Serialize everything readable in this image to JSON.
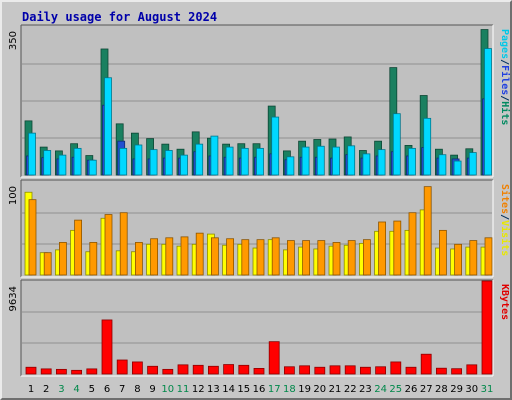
{
  "chart_data": {
    "type": "bar",
    "title": "Daily usage for August 2024",
    "categories": [
      "1",
      "2",
      "3",
      "4",
      "5",
      "6",
      "7",
      "8",
      "9",
      "10",
      "11",
      "12",
      "13",
      "14",
      "15",
      "16",
      "17",
      "18",
      "19",
      "20",
      "21",
      "22",
      "23",
      "24",
      "25",
      "26",
      "27",
      "28",
      "29",
      "30",
      "31"
    ],
    "weekend_days": [
      "3",
      "4",
      "10",
      "11",
      "17",
      "18",
      "24",
      "25",
      "31"
    ],
    "panels": [
      {
        "id": "hits-files-pages",
        "ymax": 350,
        "ymax_label": "350",
        "axis_label_parts": [
          {
            "text": "Pages",
            "color": "#00c8e8"
          },
          {
            "text": "/",
            "color": "#003060"
          },
          {
            "text": "Files",
            "color": "#2040e0"
          },
          {
            "text": "/",
            "color": "#003060"
          },
          {
            "text": "Hits",
            "color": "#008a60"
          }
        ],
        "series": [
          {
            "name": "Hits",
            "color": "#1a8060",
            "values": [
              128,
              66,
              57,
              74,
              46,
              298,
              121,
              99,
              86,
              73,
              61,
              102,
              87,
              73,
              74,
              74,
              163,
              57,
              80,
              84,
              85,
              90,
              58,
              80,
              254,
              70,
              188,
              61,
              47,
              62,
              344
            ]
          },
          {
            "name": "Files",
            "color": "#2050d0",
            "values": [
              45,
              41,
              38,
              42,
              35,
              165,
              80,
              38,
              38,
              40,
              40,
              55,
              45,
              42,
              40,
              42,
              50,
              36,
              42,
              42,
              40,
              48,
              40,
              45,
              55,
              45,
              65,
              40,
              38,
              40,
              180
            ]
          },
          {
            "name": "Pages",
            "color": "#00d8ff",
            "values": [
              99,
              58,
              47,
              63,
              35,
              230,
              63,
              71,
              60,
              58,
              47,
              73,
              92,
              66,
              63,
              63,
              137,
              43,
              66,
              68,
              66,
              69,
              50,
              60,
              145,
              63,
              134,
              48,
              33,
              53,
              299
            ]
          }
        ]
      },
      {
        "id": "visits-sites",
        "ymax": 100,
        "ymax_label": "100",
        "axis_label_parts": [
          {
            "text": "Sites",
            "color": "#f08000"
          },
          {
            "text": "/",
            "color": "#003060"
          },
          {
            "text": "Visits",
            "color": "#e8e800"
          }
        ],
        "series": [
          {
            "name": "Visits",
            "color": "#ffff00",
            "values": [
              89,
              24,
              27,
              48,
              25,
              61,
              26,
              25,
              33,
              33,
              31,
              33,
              44,
              32,
              33,
              29,
              38,
              27,
              30,
              28,
              31,
              32,
              34,
              47,
              47,
              48,
              70,
              29,
              28,
              30,
              30
            ]
          },
          {
            "name": "Sites",
            "color": "#ff9900",
            "values": [
              81,
              24,
              35,
              59,
              35,
              65,
              67,
              35,
              39,
              40,
              41,
              45,
              40,
              39,
              38,
              38,
              40,
              37,
              37,
              37,
              35,
              37,
              38,
              57,
              58,
              67,
              95,
              48,
              33,
              37,
              40
            ]
          }
        ]
      },
      {
        "id": "kbytes",
        "ymax": 9634,
        "ymax_label": "9634",
        "axis_label_parts": [
          {
            "text": "KBytes",
            "color": "#e00000"
          }
        ],
        "series": [
          {
            "name": "KBytes",
            "color": "#ff0000",
            "values": [
              700,
              530,
              480,
              380,
              530,
              5600,
              1450,
              1250,
              800,
              480,
              950,
              900,
              800,
              980,
              900,
              580,
              3350,
              750,
              850,
              700,
              850,
              850,
              700,
              750,
              1250,
              700,
              2050,
              600,
              550,
              950,
              9634
            ]
          }
        ]
      }
    ]
  }
}
